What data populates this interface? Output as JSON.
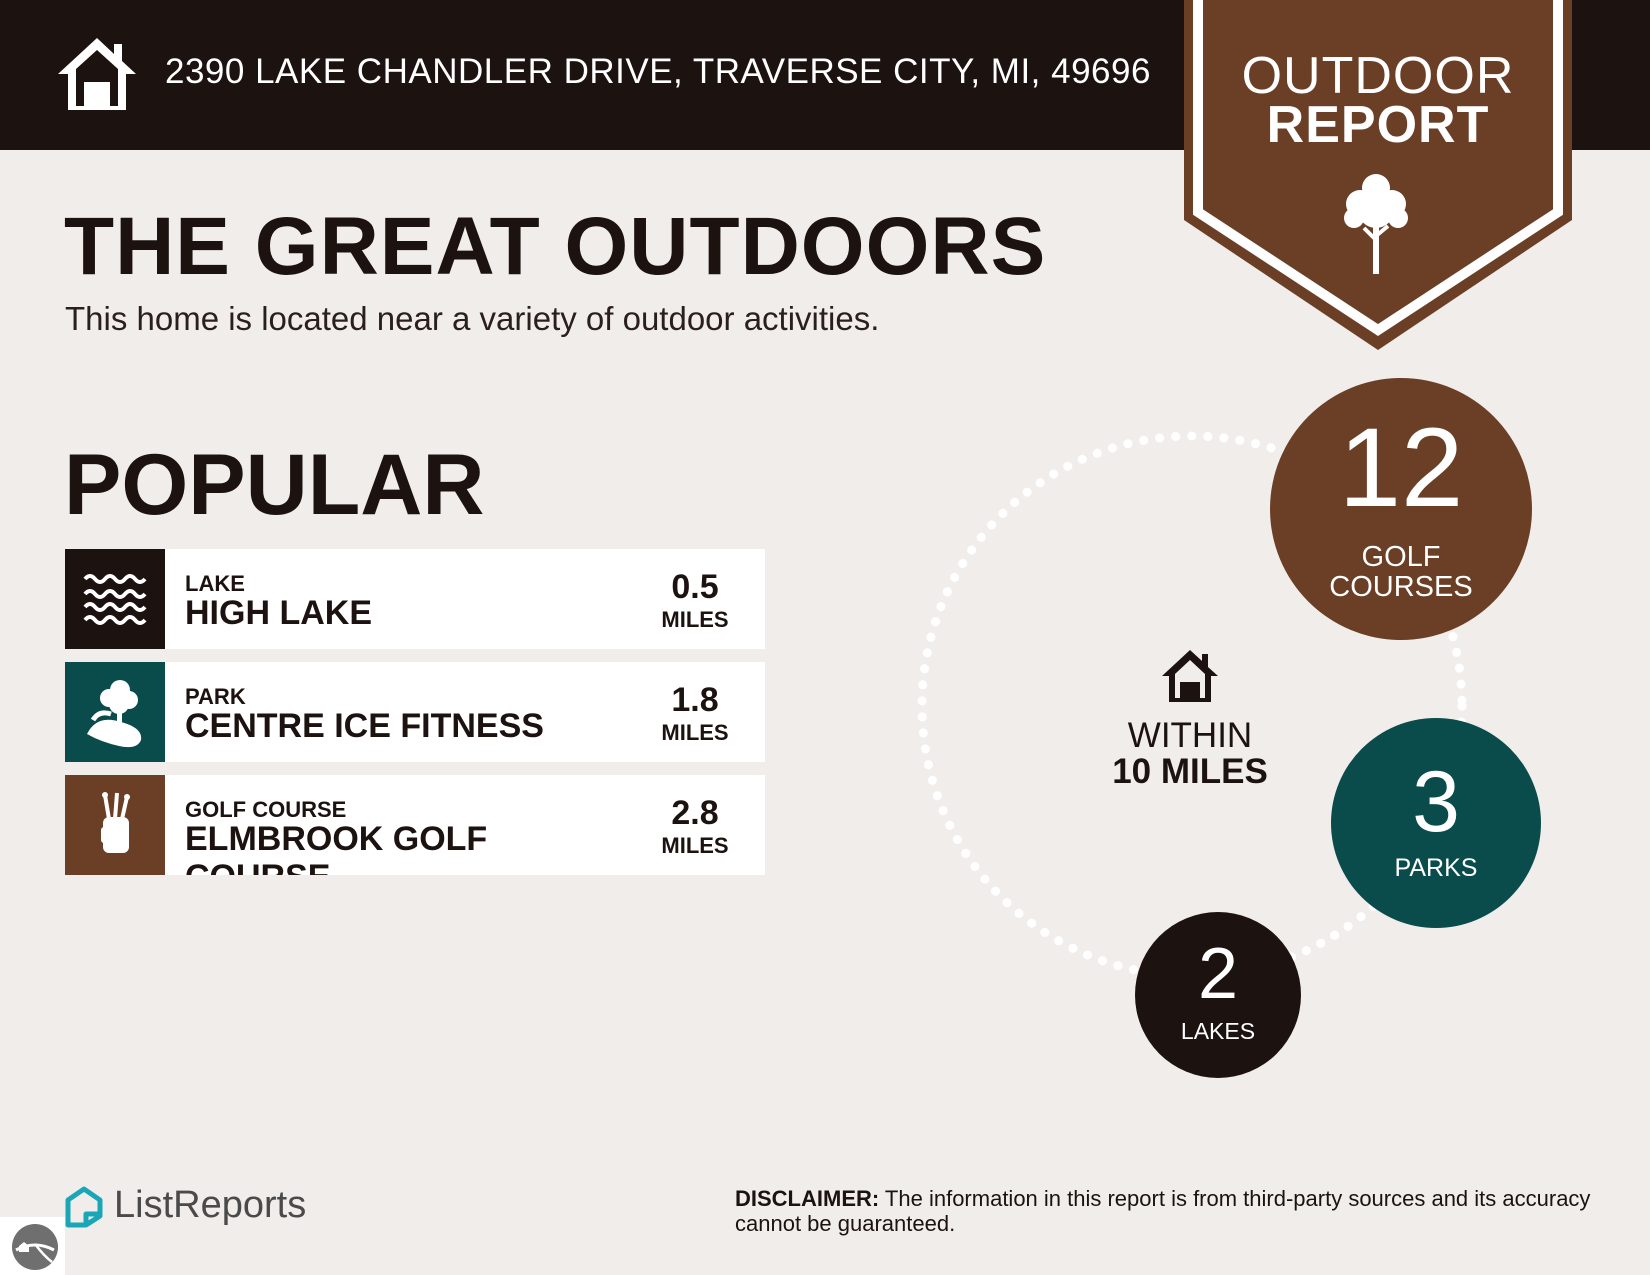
{
  "header": {
    "address": "2390 LAKE CHANDLER DRIVE, TRAVERSE CITY, MI, 49696",
    "icon": "house-icon"
  },
  "badge": {
    "line1": "OUTDOOR",
    "line2": "REPORT",
    "icon": "tree-icon",
    "color": "#6b3e26"
  },
  "intro": {
    "title": "THE GREAT OUTDOORS",
    "subtitle": "This home is located near a variety of outdoor activities."
  },
  "popular": {
    "heading": "POPULAR",
    "items": [
      {
        "type": "LAKE",
        "name": "HIGH LAKE",
        "distance": "0.5",
        "unit": "MILES",
        "icon": "waves-icon",
        "color": "#1c1210"
      },
      {
        "type": "PARK",
        "name": "CENTRE ICE FITNESS",
        "distance": "1.8",
        "unit": "MILES",
        "icon": "park-tree-icon",
        "color": "#094c4b"
      },
      {
        "type": "GOLF COURSE",
        "name": "ELMBROOK GOLF COURSE",
        "distance": "2.8",
        "unit": "MILES",
        "icon": "golf-bag-icon",
        "color": "#6b3e26"
      }
    ]
  },
  "radius": {
    "line1": "WITHIN",
    "line2": "10 MILES",
    "icon": "house-icon"
  },
  "stats": [
    {
      "count": "12",
      "label_line1": "GOLF",
      "label_line2": "COURSES",
      "color": "#6b3e26"
    },
    {
      "count": "3",
      "label_line1": "PARKS",
      "color": "#094c4b"
    },
    {
      "count": "2",
      "label_line1": "LAKES",
      "color": "#1c1210"
    }
  ],
  "footer": {
    "brand": "ListReports",
    "disclaimer_label": "DISCLAIMER:",
    "disclaimer_text": " The information in this report is from third-party sources and its accuracy cannot be guaranteed."
  }
}
